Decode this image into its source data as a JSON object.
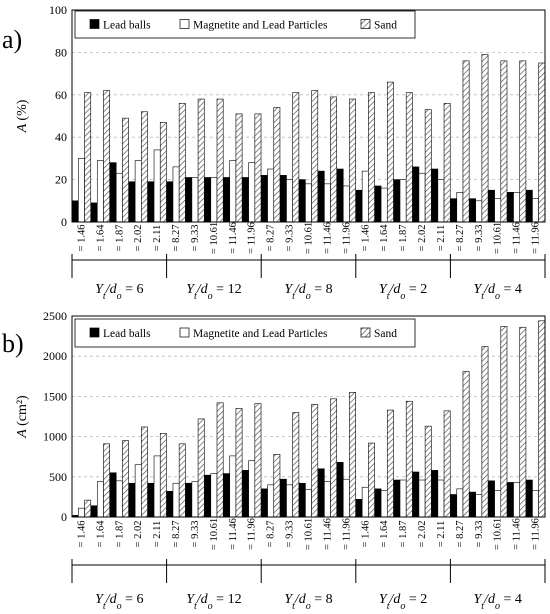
{
  "figure": {
    "panels": [
      "a)",
      "b)"
    ],
    "groups": [
      {
        "label": "Y",
        "sub": "t",
        "div": "/d",
        "sub2": "o",
        "eq": " = 6"
      },
      {
        "label": "Y",
        "sub": "t",
        "div": "/d",
        "sub2": "o",
        "eq": " = 12"
      },
      {
        "label": "Y",
        "sub": "t",
        "div": "/d",
        "sub2": "o",
        "eq": " = 8"
      },
      {
        "label": "Y",
        "sub": "t",
        "div": "/d",
        "sub2": "o",
        "eq": " = 2"
      },
      {
        "label": "Y",
        "sub": "t",
        "div": "/d",
        "sub2": "o",
        "eq": " = 4"
      }
    ],
    "colors": {
      "lead": "#000000",
      "magnetite": "#ffffff",
      "sand_hatch": "#555555",
      "grid": "#bbbbbb"
    }
  },
  "chart_data": [
    {
      "type": "bar",
      "panel": "a)",
      "ylabel": "A (%)",
      "ylim": [
        0,
        100
      ],
      "yticks": [
        0,
        20,
        40,
        60,
        80,
        100
      ],
      "grid": true,
      "legend": "top",
      "categories": [
        "= 1.46",
        "= 1.64",
        "= 1.87",
        "= 2.02",
        "= 2.11",
        "= 8.27",
        "= 9.33",
        "= 10.61",
        "= 11.46",
        "= 11.96",
        "= 8.27",
        "= 9.33",
        "= 10.61",
        "= 11.46",
        "= 11.96",
        "= 1.46",
        "= 1.64",
        "= 1.87",
        "= 2.02",
        "= 2.11",
        "= 8.27",
        "= 9.33",
        "= 10.61",
        "= 11.46",
        "= 11.96"
      ],
      "series": [
        {
          "name": "Lead balls",
          "style": "solid",
          "values": [
            10,
            9,
            28,
            19,
            19,
            19,
            21,
            21,
            21,
            21,
            22,
            22,
            20,
            24,
            25,
            15,
            17,
            20,
            26,
            25,
            11,
            11,
            15,
            14,
            15
          ]
        },
        {
          "name": "Magnetite and Lead Particles",
          "style": "open",
          "values": [
            30,
            29,
            23,
            29,
            34,
            26,
            21,
            21,
            29,
            28,
            25,
            20,
            18,
            18,
            17,
            24,
            16,
            20,
            23,
            20,
            14,
            10,
            11,
            14,
            11
          ]
        },
        {
          "name": "Sand",
          "style": "hatch",
          "values": [
            61,
            62,
            49,
            52,
            47,
            56,
            58,
            58,
            51,
            51,
            54,
            61,
            62,
            59,
            58,
            61,
            66,
            61,
            53,
            56,
            76,
            79,
            76,
            76,
            75
          ]
        }
      ]
    },
    {
      "type": "bar",
      "panel": "b)",
      "ylabel": "A (cm²)",
      "ylim": [
        0,
        2500
      ],
      "yticks": [
        0,
        500,
        1000,
        1500,
        2000,
        2500
      ],
      "grid": true,
      "legend": "top",
      "categories": [
        "= 1.46",
        "= 1.64",
        "= 1.87",
        "= 2.02",
        "= 2.11",
        "= 8.27",
        "= 9.33",
        "= 10.61",
        "= 11.46",
        "= 11.96",
        "= 8.27",
        "= 9.33",
        "= 10.61",
        "= 11.46",
        "= 11.96",
        "= 1.46",
        "= 1.64",
        "= 1.87",
        "= 2.02",
        "= 2.11",
        "= 8.27",
        "= 9.33",
        "= 10.61",
        "= 11.46",
        "= 11.96"
      ],
      "series": [
        {
          "name": "Lead balls",
          "style": "solid",
          "values": [
            20,
            140,
            550,
            420,
            420,
            320,
            420,
            520,
            540,
            580,
            350,
            470,
            420,
            600,
            680,
            220,
            350,
            460,
            560,
            580,
            280,
            310,
            450,
            430,
            460
          ]
        },
        {
          "name": "Magnetite and Lead Particles",
          "style": "open",
          "values": [
            110,
            440,
            450,
            650,
            760,
            420,
            440,
            540,
            760,
            700,
            400,
            400,
            340,
            440,
            470,
            370,
            330,
            460,
            460,
            460,
            350,
            280,
            330,
            430,
            330
          ]
        },
        {
          "name": "Sand",
          "style": "hatch",
          "values": [
            210,
            910,
            950,
            1120,
            1040,
            910,
            1220,
            1420,
            1350,
            1410,
            780,
            1300,
            1400,
            1470,
            1550,
            920,
            1330,
            1440,
            1130,
            1320,
            1810,
            2120,
            2370,
            2360,
            2440
          ]
        }
      ]
    }
  ]
}
